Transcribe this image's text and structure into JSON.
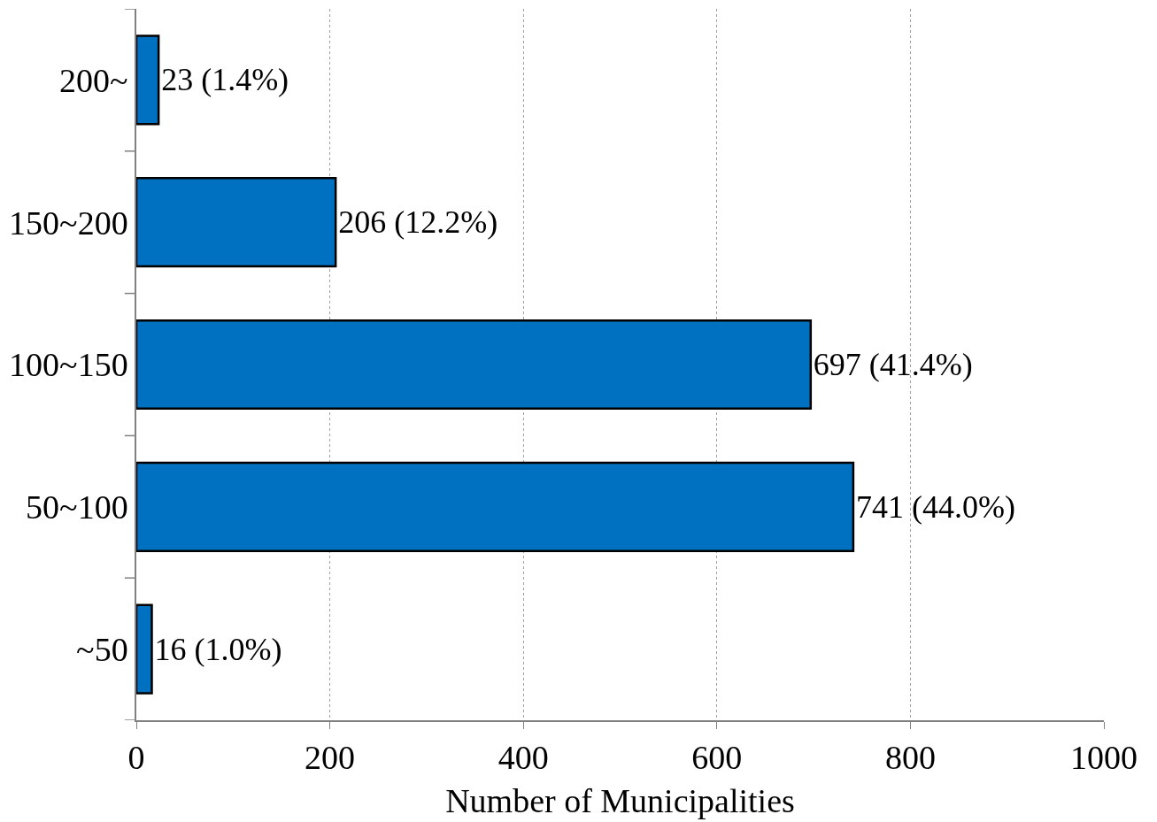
{
  "chart_data": {
    "type": "bar",
    "orientation": "horizontal",
    "xlabel": "Number of Municipalities",
    "categories": [
      "200~",
      "150~200",
      "100~150",
      "50~100",
      "~50"
    ],
    "values": [
      23,
      206,
      697,
      741,
      16
    ],
    "value_labels": [
      "23 (1.4%)",
      "206 (12.2%)",
      "697 (41.4%)",
      "741 (44.0%)",
      "16 (1.0%)"
    ],
    "color": "#0070c0",
    "xlim": [
      0,
      1000
    ],
    "xticks": [
      0,
      200,
      400,
      600,
      800,
      1000
    ],
    "grid": "x"
  }
}
